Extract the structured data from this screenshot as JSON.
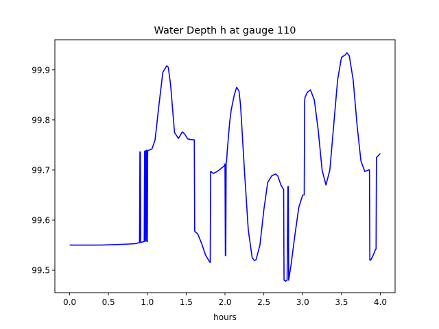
{
  "chart_data": {
    "type": "line",
    "title": "Water Depth h at gauge 110",
    "xlabel": "hours",
    "ylabel": "",
    "xlim": [
      -0.19,
      4.19
    ],
    "ylim": [
      99.455,
      99.96
    ],
    "xticks": [
      0.0,
      0.5,
      1.0,
      1.5,
      2.0,
      2.5,
      3.0,
      3.5,
      4.0
    ],
    "xtick_labels": [
      "0.0",
      "0.5",
      "1.0",
      "1.5",
      "2.0",
      "2.5",
      "3.0",
      "3.5",
      "4.0"
    ],
    "yticks": [
      99.5,
      99.6,
      99.7,
      99.8,
      99.9
    ],
    "ytick_labels": [
      "99.5",
      "99.6",
      "99.7",
      "99.8",
      "99.9"
    ],
    "grid": false,
    "line_color": "#0000ff",
    "series": [
      {
        "name": "",
        "x": [
          0.0,
          0.2,
          0.4,
          0.6,
          0.75,
          0.85,
          0.9,
          0.905,
          0.91,
          0.915,
          0.92,
          0.93,
          0.96,
          0.965,
          0.97,
          0.975,
          0.98,
          0.985,
          0.99,
          0.995,
          1.0,
          1.005,
          1.01,
          1.03,
          1.06,
          1.1,
          1.15,
          1.2,
          1.25,
          1.27,
          1.3,
          1.35,
          1.4,
          1.42,
          1.45,
          1.48,
          1.52,
          1.55,
          1.6,
          1.605,
          1.61,
          1.615,
          1.65,
          1.7,
          1.75,
          1.8,
          1.81,
          1.815,
          1.82,
          1.85,
          1.9,
          1.95,
          1.99,
          2.0,
          2.005,
          2.01,
          2.015,
          2.02,
          2.03,
          2.06,
          2.08,
          2.12,
          2.15,
          2.18,
          2.2,
          2.25,
          2.3,
          2.35,
          2.38,
          2.4,
          2.45,
          2.5,
          2.55,
          2.6,
          2.65,
          2.68,
          2.72,
          2.75,
          2.755,
          2.76,
          2.78,
          2.8,
          2.81,
          2.815,
          2.82,
          2.83,
          2.85,
          2.9,
          2.95,
          3.0,
          3.02,
          3.025,
          3.03,
          3.06,
          3.1,
          3.15,
          3.2,
          3.25,
          3.3,
          3.35,
          3.4,
          3.45,
          3.5,
          3.55,
          3.57,
          3.6,
          3.65,
          3.7,
          3.75,
          3.8,
          3.85,
          3.86,
          3.865,
          3.87,
          3.875,
          3.9,
          3.94,
          3.945,
          3.95,
          3.97,
          4.0
        ],
        "y": [
          99.55,
          99.55,
          99.55,
          99.551,
          99.552,
          99.553,
          99.555,
          99.736,
          99.736,
          99.555,
          99.555,
          99.556,
          99.557,
          99.737,
          99.738,
          99.558,
          99.558,
          99.739,
          99.739,
          99.557,
          99.557,
          99.739,
          99.739,
          99.74,
          99.742,
          99.76,
          99.83,
          99.895,
          99.908,
          99.905,
          99.87,
          99.775,
          99.763,
          99.768,
          99.776,
          99.772,
          99.762,
          99.761,
          99.76,
          99.76,
          99.578,
          99.577,
          99.572,
          99.553,
          99.53,
          99.517,
          99.515,
          99.697,
          99.697,
          99.693,
          99.697,
          99.703,
          99.708,
          99.712,
          99.529,
          99.529,
          99.716,
          99.716,
          99.74,
          99.795,
          99.82,
          99.85,
          99.865,
          99.858,
          99.83,
          99.7,
          99.58,
          99.525,
          99.519,
          99.521,
          99.55,
          99.62,
          99.675,
          99.688,
          99.692,
          99.688,
          99.67,
          99.662,
          99.662,
          99.48,
          99.478,
          99.48,
          99.667,
          99.667,
          99.48,
          99.49,
          99.51,
          99.57,
          99.625,
          99.65,
          99.65,
          99.835,
          99.845,
          99.855,
          99.86,
          99.84,
          99.78,
          99.7,
          99.67,
          99.7,
          99.79,
          99.88,
          99.925,
          99.93,
          99.934,
          99.928,
          99.88,
          99.79,
          99.718,
          99.697,
          99.7,
          99.7,
          99.52,
          99.52,
          99.52,
          99.527,
          99.542,
          99.542,
          99.725,
          99.728,
          99.733
        ]
      }
    ]
  }
}
